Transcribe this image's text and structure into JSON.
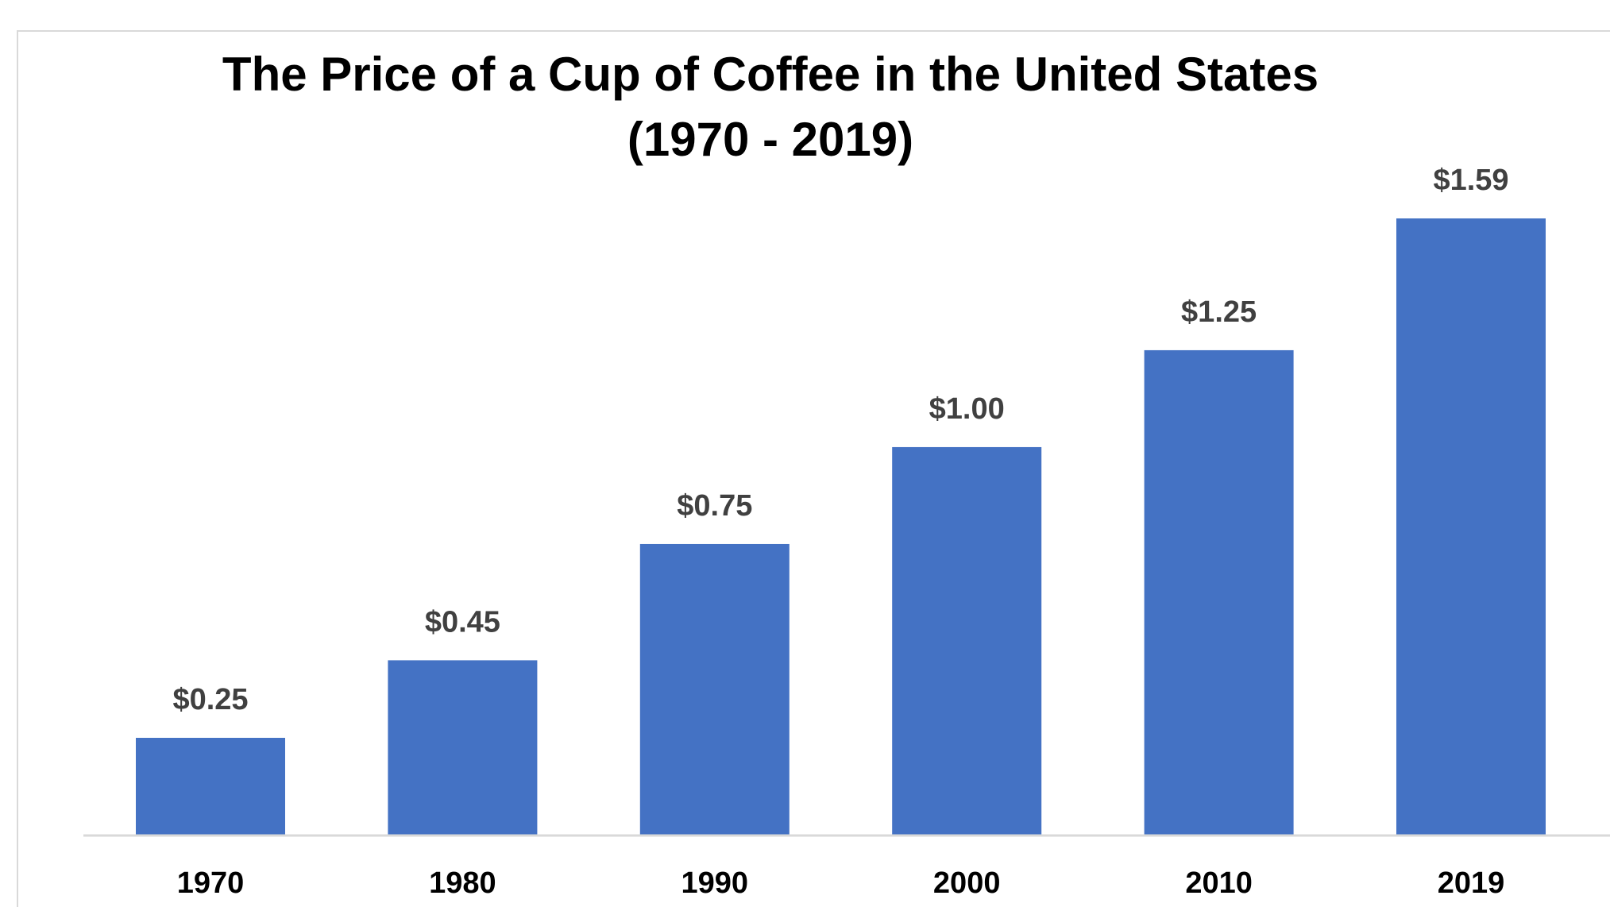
{
  "chart_data": {
    "type": "bar",
    "title": "The Price of a Cup of Coffee in the United States",
    "subtitle": "(1970 - 2019)",
    "categories": [
      "1970",
      "1980",
      "1990",
      "2000",
      "2010",
      "2019"
    ],
    "values": [
      0.25,
      0.45,
      0.75,
      1.0,
      1.25,
      1.59
    ],
    "value_labels": [
      "$0.25",
      "$0.45",
      "$0.75",
      "$1.00",
      "$1.25",
      "$1.59"
    ],
    "xlabel": "",
    "ylabel": "",
    "ylim": [
      0,
      1.59
    ],
    "grid": false,
    "legend": "none",
    "bar_color": "#4472c4",
    "axis_color": "#d9d9d9"
  }
}
